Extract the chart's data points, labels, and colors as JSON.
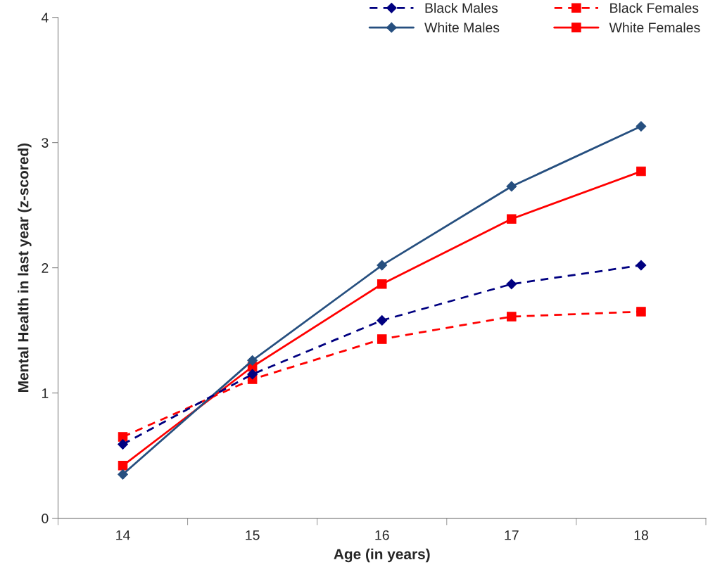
{
  "chart_data": {
    "type": "line",
    "xlabel": "Age (in years)",
    "ylabel": "Mental Health in last year (z-scored)",
    "categories": [
      "14",
      "15",
      "16",
      "17",
      "18"
    ],
    "series": [
      {
        "name": "Black Males",
        "color": "#000080",
        "marker": "diamond",
        "line_style": "dashed",
        "values": [
          0.59,
          1.15,
          1.58,
          1.87,
          2.02
        ]
      },
      {
        "name": "White Males",
        "color": "#264f7f",
        "marker": "diamond",
        "line_style": "solid",
        "values": [
          0.35,
          1.26,
          2.02,
          2.65,
          3.13
        ]
      },
      {
        "name": "Black Females",
        "color": "#ff0000",
        "marker": "square",
        "line_style": "dashed",
        "values": [
          0.65,
          1.11,
          1.43,
          1.61,
          1.65
        ]
      },
      {
        "name": "White Females",
        "color": "#ff0000",
        "marker": "square",
        "line_style": "solid",
        "values": [
          0.42,
          1.21,
          1.87,
          2.39,
          2.77
        ]
      }
    ],
    "ylim": [
      0,
      4
    ],
    "yticks": [
      0,
      1,
      2,
      3,
      4
    ],
    "grid": false,
    "legend": "top right"
  }
}
